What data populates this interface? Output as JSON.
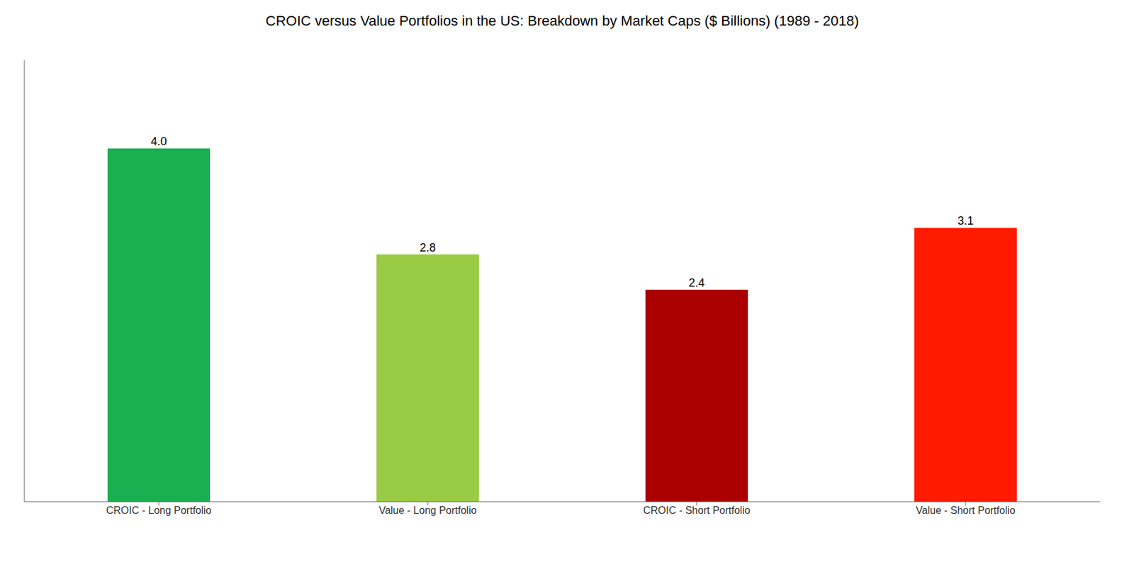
{
  "chart_data": {
    "type": "bar",
    "title": "CROIC versus Value Portfolios in the US: Breakdown by Market Caps ($ Billions) (1989 - 2018)",
    "categories": [
      "CROIC - Long Portfolio",
      "Value - Long Portfolio",
      "CROIC - Short Portfolio",
      "Value - Short Portfolio"
    ],
    "values": [
      4.0,
      2.8,
      2.4,
      3.1
    ],
    "value_labels": [
      "4.0",
      "2.8",
      "2.4",
      "3.1"
    ],
    "colors": [
      "#1aaf50",
      "#99cc44",
      "#aa0000",
      "#ff1a00"
    ],
    "ylim": [
      0,
      5.0
    ],
    "grid": false,
    "data_labels": true,
    "tick_labels": "x"
  }
}
